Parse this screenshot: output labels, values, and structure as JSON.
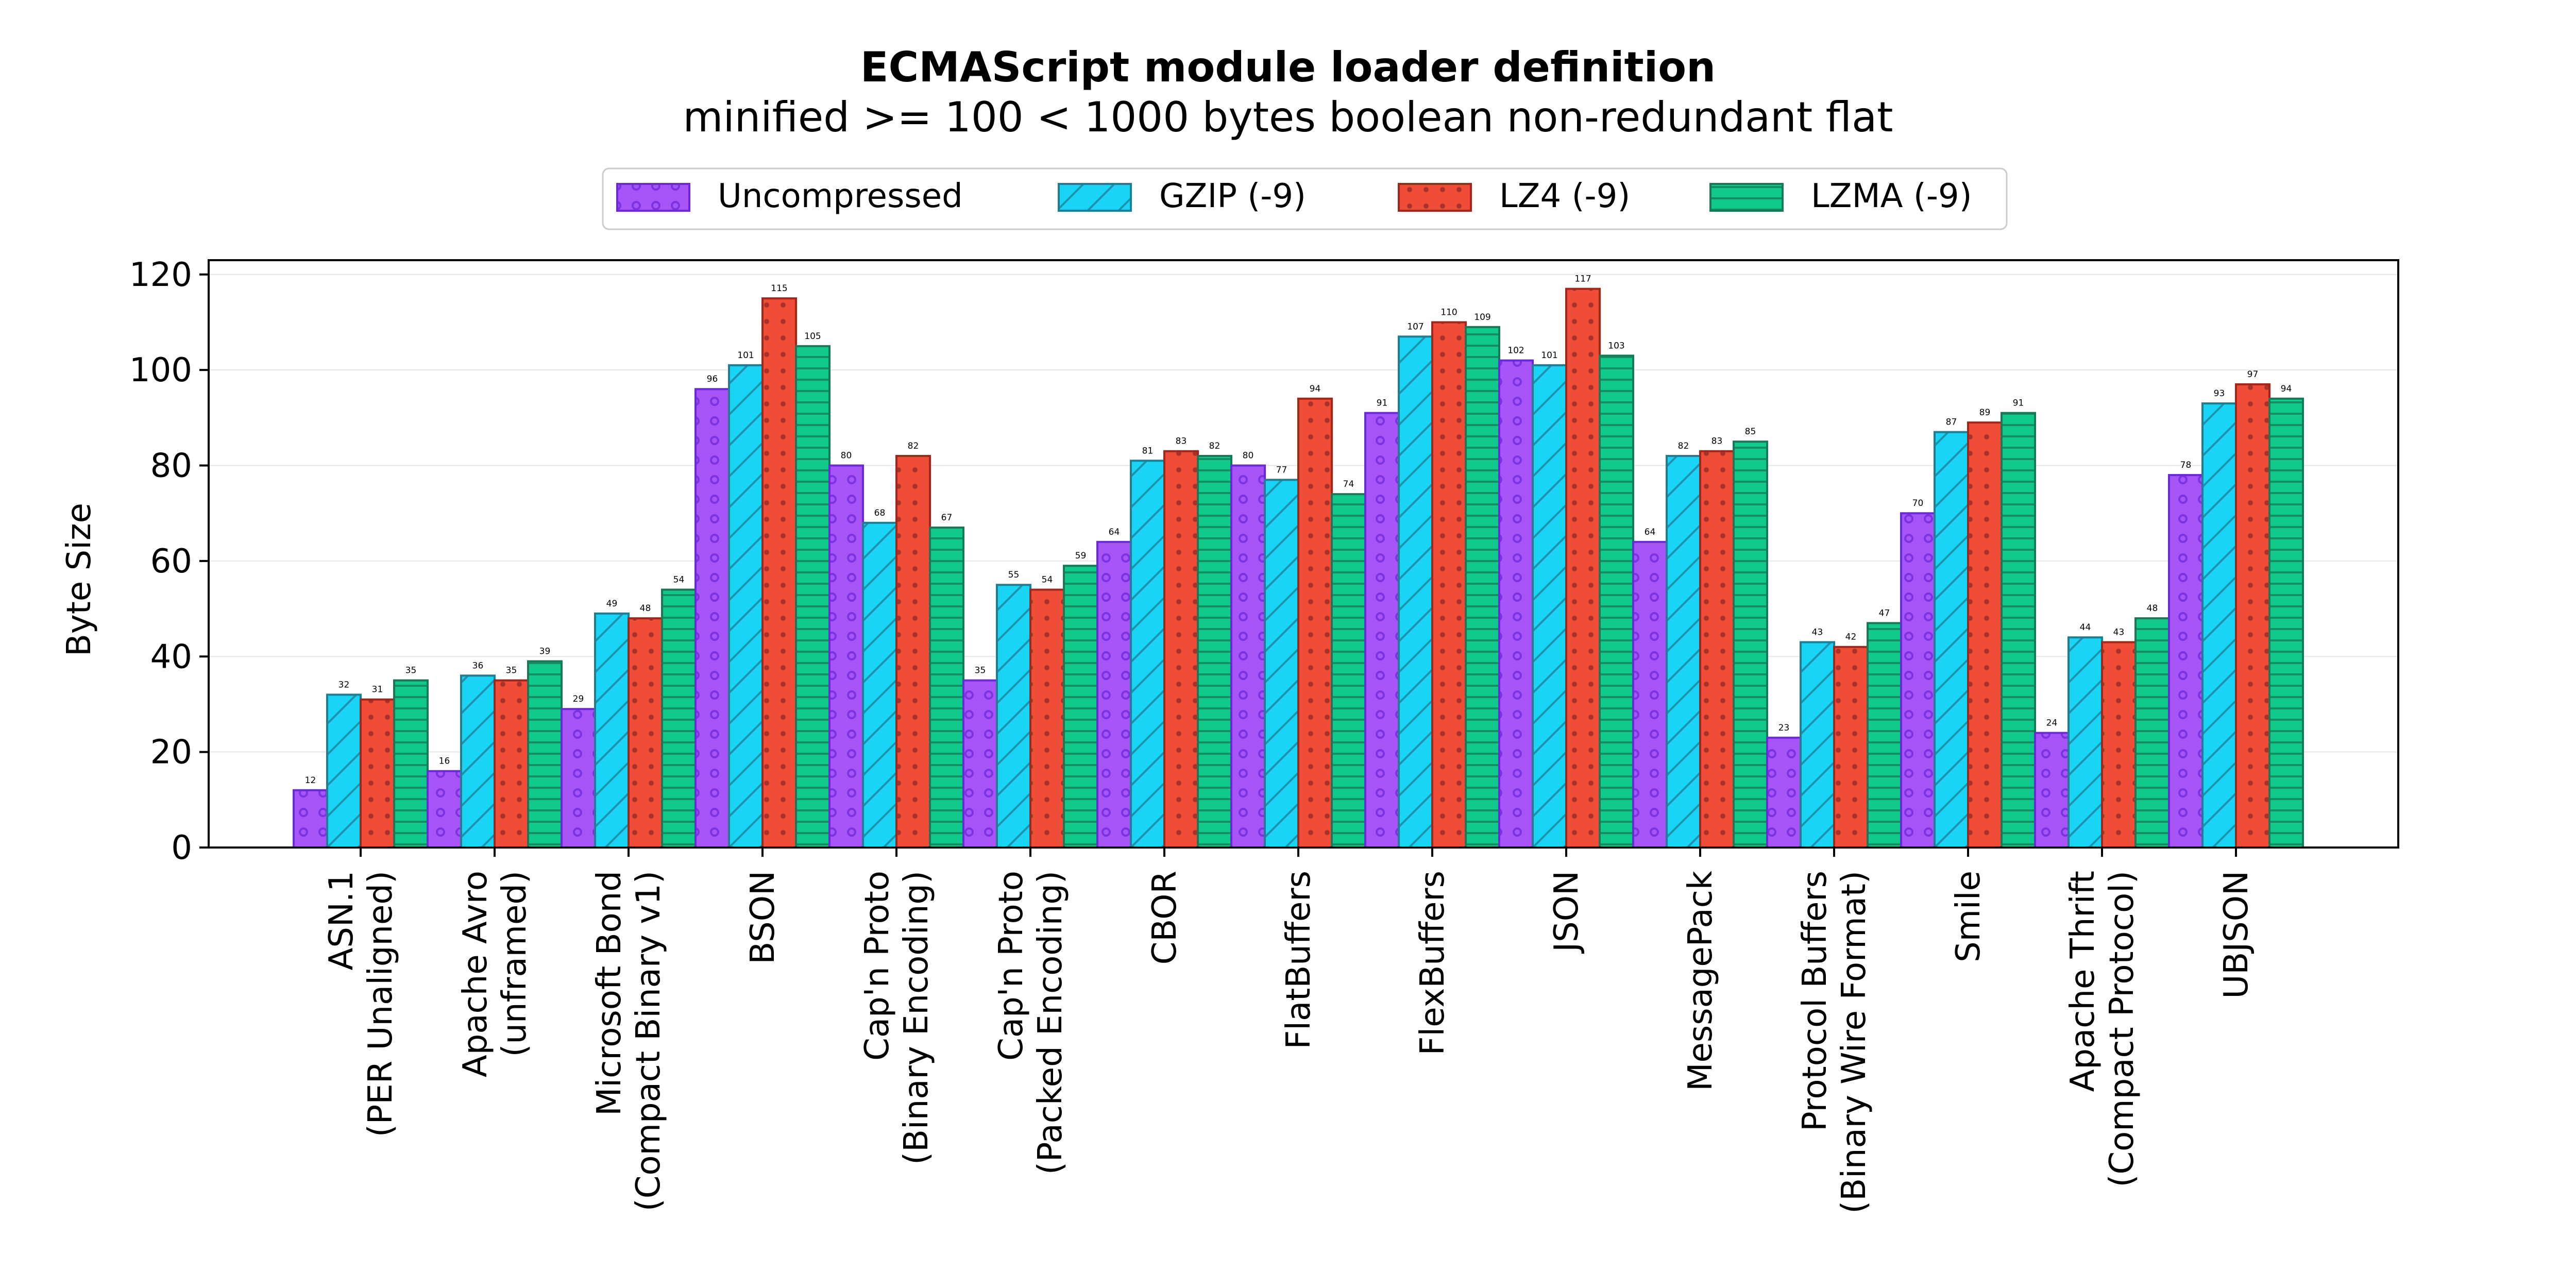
{
  "chart_data": {
    "type": "bar",
    "title": "ECMAScript module loader definition",
    "subtitle": "minified >= 100 < 1000 bytes boolean non-redundant flat",
    "xlabel": "",
    "ylabel": "Byte Size",
    "ylim": [
      0,
      123
    ],
    "yticks": [
      "0",
      "20",
      "40",
      "60",
      "80",
      "100",
      "120"
    ],
    "grid": true,
    "legend_position": "top",
    "categories": [
      [
        "ASN.1",
        "(PER Unaligned)"
      ],
      [
        "Apache Avro",
        "(unframed)"
      ],
      [
        "Microsoft Bond",
        "(Compact Binary v1)"
      ],
      [
        "BSON"
      ],
      [
        "Cap'n Proto",
        "(Binary Encoding)"
      ],
      [
        "Cap'n Proto",
        "(Packed Encoding)"
      ],
      [
        "CBOR"
      ],
      [
        "FlatBuffers"
      ],
      [
        "FlexBuffers"
      ],
      [
        "JSON"
      ],
      [
        "MessagePack"
      ],
      [
        "Protocol Buffers",
        "(Binary Wire Format)"
      ],
      [
        "Smile"
      ],
      [
        "Apache Thrift",
        "(Compact Protocol)"
      ],
      [
        "UBJSON"
      ]
    ],
    "series": [
      {
        "name": "Uncompressed",
        "color": "#a855f7",
        "edge": "#6d28d9",
        "pattern": "circles",
        "values": [
          12,
          16,
          29,
          96,
          80,
          35,
          64,
          80,
          91,
          102,
          64,
          23,
          70,
          24,
          78
        ]
      },
      {
        "name": "GZIP (-9)",
        "color": "#1ad4f5",
        "edge": "#1b7f95",
        "pattern": "diagonal",
        "values": [
          32,
          36,
          49,
          101,
          68,
          55,
          81,
          77,
          107,
          101,
          82,
          43,
          87,
          44,
          93
        ]
      },
      {
        "name": "LZ4 (-9)",
        "color": "#ef4d38",
        "edge": "#a3261b",
        "pattern": "dots",
        "values": [
          31,
          35,
          48,
          115,
          82,
          54,
          83,
          94,
          110,
          117,
          83,
          42,
          89,
          43,
          97
        ]
      },
      {
        "name": "LZMA (-9)",
        "color": "#10c98a",
        "edge": "#167a57",
        "pattern": "horizontal",
        "values": [
          35,
          39,
          54,
          105,
          67,
          59,
          82,
          74,
          109,
          103,
          85,
          47,
          91,
          48,
          94
        ]
      }
    ]
  }
}
